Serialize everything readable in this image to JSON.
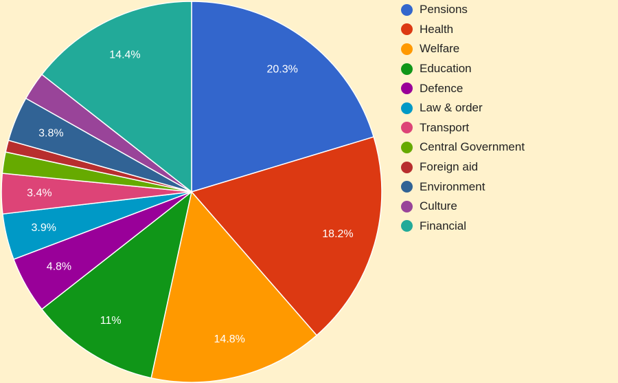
{
  "chart_data": {
    "type": "pie",
    "title": "",
    "legend_position": "right",
    "slices": [
      {
        "label": "Pensions",
        "value": 20.3,
        "display": "20.3%",
        "color": "#3366cc"
      },
      {
        "label": "Health",
        "value": 18.2,
        "display": "18.2%",
        "color": "#dc3912"
      },
      {
        "label": "Welfare",
        "value": 14.8,
        "display": "14.8%",
        "color": "#ff9900"
      },
      {
        "label": "Education",
        "value": 11,
        "display": "11%",
        "color": "#109618"
      },
      {
        "label": "Defence",
        "value": 4.8,
        "display": "4.8%",
        "color": "#990099"
      },
      {
        "label": "Law & order",
        "value": 3.9,
        "display": "3.9%",
        "color": "#0099c6"
      },
      {
        "label": "Transport",
        "value": 3.4,
        "display": "3.4%",
        "color": "#dd4477"
      },
      {
        "label": "Central Government",
        "value": 1.8,
        "display": "",
        "color": "#66aa00"
      },
      {
        "label": "Foreign aid",
        "value": 1.0,
        "display": "",
        "color": "#b82e2e"
      },
      {
        "label": "Environment",
        "value": 3.8,
        "display": "3.8%",
        "color": "#316395"
      },
      {
        "label": "Culture",
        "value": 2.4,
        "display": "",
        "color": "#994499"
      },
      {
        "label": "Financial",
        "value": 14.4,
        "display": "14.4%",
        "color": "#22aa99"
      }
    ]
  }
}
